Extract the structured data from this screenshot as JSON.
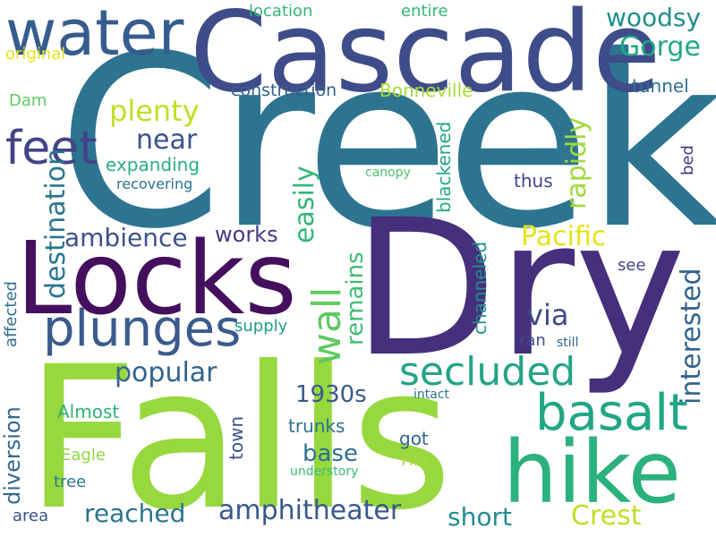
{
  "words": [
    {
      "text": "Creek",
      "color": "#2d7491"
    },
    {
      "text": "Dry",
      "color": "#462f7c"
    },
    {
      "text": "Falls",
      "color": "#97d83f"
    },
    {
      "text": "Cascade",
      "color": "#3e4c89"
    },
    {
      "text": "Locks",
      "color": "#440f5d"
    },
    {
      "text": "hike",
      "color": "#2bb17d"
    },
    {
      "text": "water",
      "color": "#365c8d"
    },
    {
      "text": "plunges",
      "color": "#3a5b8c"
    },
    {
      "text": "basalt",
      "color": "#21a685"
    },
    {
      "text": "feet",
      "color": "#414487"
    },
    {
      "text": "secluded",
      "color": "#25a486"
    },
    {
      "text": "wall",
      "color": "#5ec962"
    },
    {
      "text": "Gorge",
      "color": "#22a884"
    },
    {
      "text": "woodsy",
      "color": "#228d8d"
    },
    {
      "text": "plenty",
      "color": "#c2df23"
    },
    {
      "text": "near",
      "color": "#3b528b"
    },
    {
      "text": "Pacific",
      "color": "#e4e419"
    },
    {
      "text": "destination",
      "color": "#2b758e"
    },
    {
      "text": "ambience",
      "color": "#3b518b"
    },
    {
      "text": "easily",
      "color": "#34b679"
    },
    {
      "text": "rapidly",
      "color": "#9fda3a"
    },
    {
      "text": "via",
      "color": "#3e4a89"
    },
    {
      "text": "popular",
      "color": "#32648e"
    },
    {
      "text": "interested",
      "color": "#33638d"
    },
    {
      "text": "remains",
      "color": "#3ebc74"
    },
    {
      "text": "amphitheater",
      "color": "#38598c"
    },
    {
      "text": "reached",
      "color": "#2b758e"
    },
    {
      "text": "short",
      "color": "#228c8d"
    },
    {
      "text": "Crest",
      "color": "#bddf26"
    },
    {
      "text": "1930s",
      "color": "#38598c"
    },
    {
      "text": "base",
      "color": "#2e6f8e"
    },
    {
      "text": "construction",
      "color": "#355f8d"
    },
    {
      "text": "Bonneville",
      "color": "#a5db36"
    },
    {
      "text": "works",
      "color": "#443983"
    },
    {
      "text": "expanding",
      "color": "#29af7f"
    },
    {
      "text": "diversion",
      "color": "#31688e"
    },
    {
      "text": "location",
      "color": "#35b779"
    },
    {
      "text": "entire",
      "color": "#35b779"
    },
    {
      "text": "original",
      "color": "#e5e419"
    },
    {
      "text": "tunnel",
      "color": "#2c718e"
    },
    {
      "text": "Dam",
      "color": "#5ec962"
    },
    {
      "text": "thus",
      "color": "#414487"
    },
    {
      "text": "blackened",
      "color": "#22a884"
    },
    {
      "text": "channeled",
      "color": "#21918c"
    },
    {
      "text": "supply",
      "color": "#1f9e89"
    },
    {
      "text": "recovering",
      "color": "#2c728e"
    },
    {
      "text": "canopy",
      "color": "#4ac16d"
    },
    {
      "text": "bed",
      "color": "#443983"
    },
    {
      "text": "see",
      "color": "#3f4788"
    },
    {
      "text": "affected",
      "color": "#2e6f8e"
    },
    {
      "text": "trunks",
      "color": "#2d708e"
    },
    {
      "text": "Almost",
      "color": "#2db27d"
    },
    {
      "text": "got",
      "color": "#32648e"
    },
    {
      "text": "town",
      "color": "#3b518b"
    },
    {
      "text": "ran",
      "color": "#3d4e8a"
    },
    {
      "text": "still",
      "color": "#31688e"
    },
    {
      "text": "intact",
      "color": "#2c728e"
    },
    {
      "text": "Eagle",
      "color": "#90d743"
    },
    {
      "text": "Fire",
      "color": "#a8db34"
    },
    {
      "text": "tree",
      "color": "#2a788e"
    },
    {
      "text": "understory",
      "color": "#3aba76"
    },
    {
      "text": "area",
      "color": "#3b528b"
    }
  ]
}
